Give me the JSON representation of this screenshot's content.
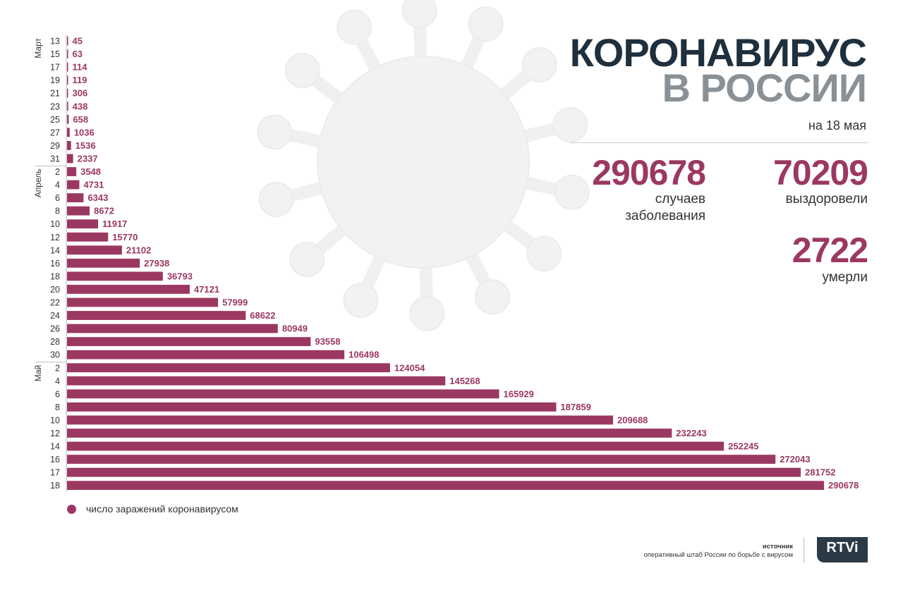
{
  "title": {
    "line1": "КОРОНАВИРУС",
    "line2": "В РОССИИ",
    "date": "на 18 мая"
  },
  "stats": {
    "cases": {
      "value": "290678",
      "label_line1": "случаев",
      "label_line2": "заболевания"
    },
    "recovered": {
      "value": "70209",
      "label": "выздоровели"
    },
    "deaths": {
      "value": "2722",
      "label": "умерли"
    }
  },
  "legend": {
    "label": "число заражений коронавирусом"
  },
  "source": {
    "title": "источник",
    "text": "оперативный штаб России по борьбе с вирусом"
  },
  "logo": {
    "text": "RTVi"
  },
  "colors": {
    "bar": "#9b3862",
    "title_dark": "#1e2f3d",
    "title_grey": "#8a9196",
    "logo_bg": "#2b3a46"
  },
  "chart_data": {
    "type": "bar",
    "orientation": "horizontal",
    "months": [
      {
        "label": "Март",
        "from": 0,
        "to": 9
      },
      {
        "label": "Апрель",
        "from": 10,
        "to": 24
      },
      {
        "label": "Май",
        "from": 25,
        "to": 34
      }
    ],
    "categories": [
      "13",
      "15",
      "17",
      "19",
      "21",
      "23",
      "25",
      "27",
      "29",
      "31",
      "2",
      "4",
      "6",
      "8",
      "10",
      "12",
      "14",
      "16",
      "18",
      "20",
      "22",
      "24",
      "26",
      "28",
      "30",
      "2",
      "4",
      "6",
      "8",
      "10",
      "12",
      "14",
      "16",
      "17",
      "18"
    ],
    "values": [
      45,
      63,
      114,
      119,
      306,
      438,
      658,
      1036,
      1536,
      2337,
      3548,
      4731,
      6343,
      8672,
      11917,
      15770,
      21102,
      27938,
      36793,
      47121,
      57999,
      68622,
      80949,
      93558,
      106498,
      124054,
      145268,
      165929,
      187859,
      209688,
      232243,
      252245,
      272043,
      281752,
      290678
    ],
    "series_name": "число заражений коронавирусом"
  }
}
